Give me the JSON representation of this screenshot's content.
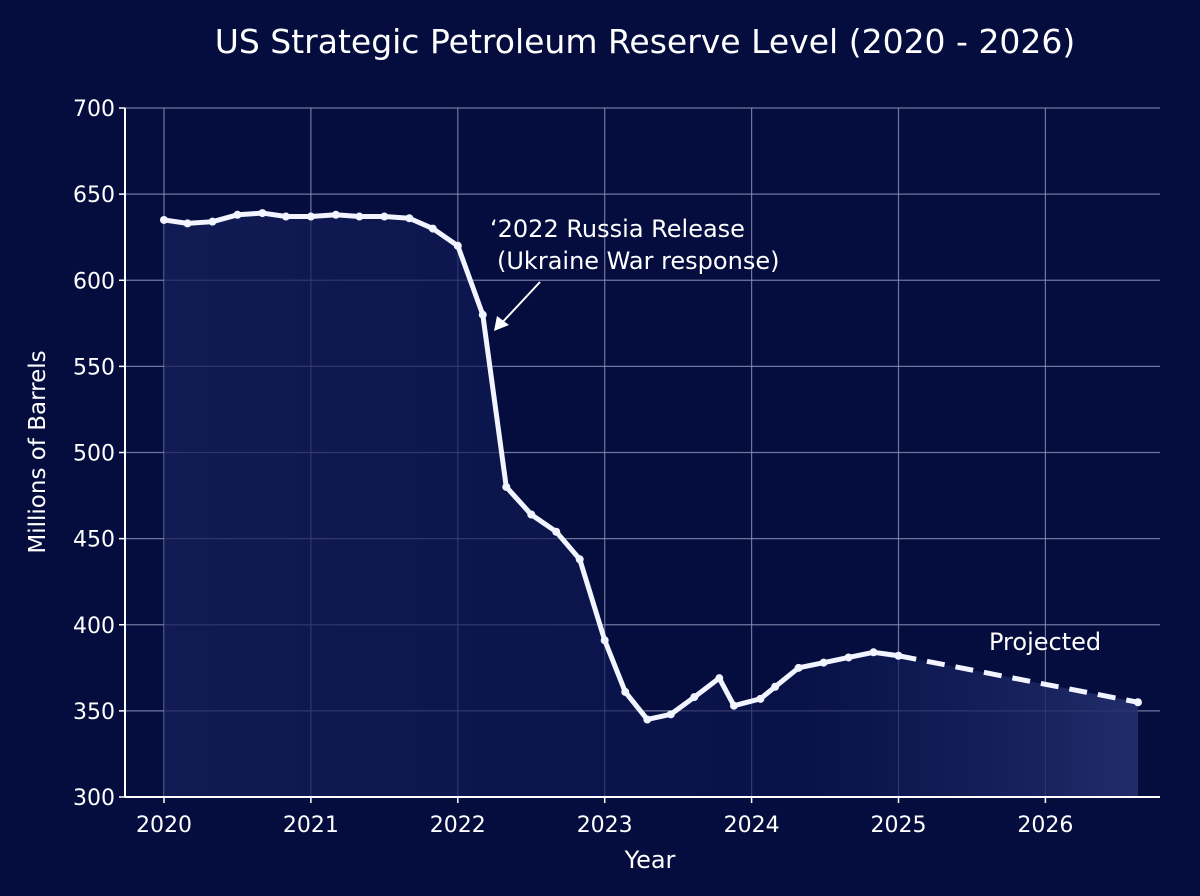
{
  "chart_data": {
    "type": "line",
    "title": "US Strategic Petroleum Reserve Level (2020 - 2026)",
    "xlabel": "Year",
    "ylabel": "Millions of Barrels",
    "xlim": [
      2019.97,
      2026.68
    ],
    "ylim": [
      300,
      700
    ],
    "xticks": [
      "2020",
      "2021",
      "2022",
      "2023",
      "2024",
      "2025",
      "2026"
    ],
    "yticks": [
      "300",
      "350",
      "400",
      "450",
      "500",
      "550",
      "600",
      "650",
      "700"
    ],
    "grid": true,
    "series": [
      {
        "style": "solid",
        "x": [
          2020.0,
          2020.16,
          2020.33,
          2020.5,
          2020.67,
          2020.83,
          2021.0,
          2021.17,
          2021.33,
          2021.5,
          2021.67,
          2021.83,
          2022.0,
          2022.17,
          2022.33,
          2022.5,
          2022.67,
          2022.83,
          2023.0,
          2023.14,
          2023.29,
          2023.45,
          2023.61,
          2023.78,
          2023.88,
          2024.06,
          2024.16,
          2024.32,
          2024.49,
          2024.66,
          2024.83,
          2025.0
        ],
        "values": [
          635,
          633,
          634,
          638,
          639,
          637,
          637,
          638,
          637,
          637,
          636,
          630,
          620,
          580,
          480,
          464,
          454,
          438,
          391,
          361,
          345,
          348,
          358,
          369,
          353,
          357,
          364,
          375,
          378,
          381,
          384,
          382
        ]
      },
      {
        "name": "Projected",
        "style": "dashed",
        "x": [
          2025.0,
          2026.63
        ],
        "values": [
          382,
          355
        ]
      }
    ],
    "annotations": [
      {
        "text_line1": "‘2022 Russia Release",
        "text_line2": "(Ukraine War response)",
        "x": 2022.2,
        "y": 578
      },
      {
        "text": "Projected"
      }
    ],
    "colors": {
      "background": "#040d3e",
      "line": "#f2f5ff",
      "grid": "#8a90b8",
      "fill": "#1a2560"
    }
  }
}
